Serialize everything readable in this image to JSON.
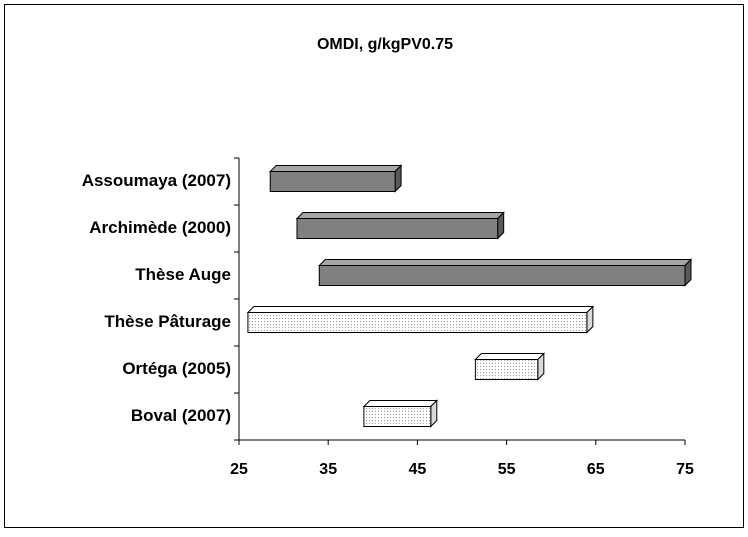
{
  "chart_data": {
    "type": "floating-bar",
    "title": "OMDI, g/kgPV0.75",
    "categories": [
      "Assoumaya (2007)",
      "Archimède (2000)",
      "Thèse Auge",
      "Thèse Pâturage",
      "Ortéga (2005)",
      "Boval (2007)"
    ],
    "values": [
      [
        28.5,
        42.5
      ],
      [
        31.5,
        54
      ],
      [
        34,
        75
      ],
      [
        26,
        64
      ],
      [
        51.5,
        58.5
      ],
      [
        39,
        46.5
      ]
    ],
    "colors": [
      "#808080",
      "#808080",
      "#808080",
      "#f2f2f2",
      "#f2f2f2",
      "#f2f2f2"
    ],
    "xlim": [
      25,
      75
    ],
    "xticks": [
      25,
      35,
      45,
      55,
      65,
      75
    ],
    "grid": false
  }
}
